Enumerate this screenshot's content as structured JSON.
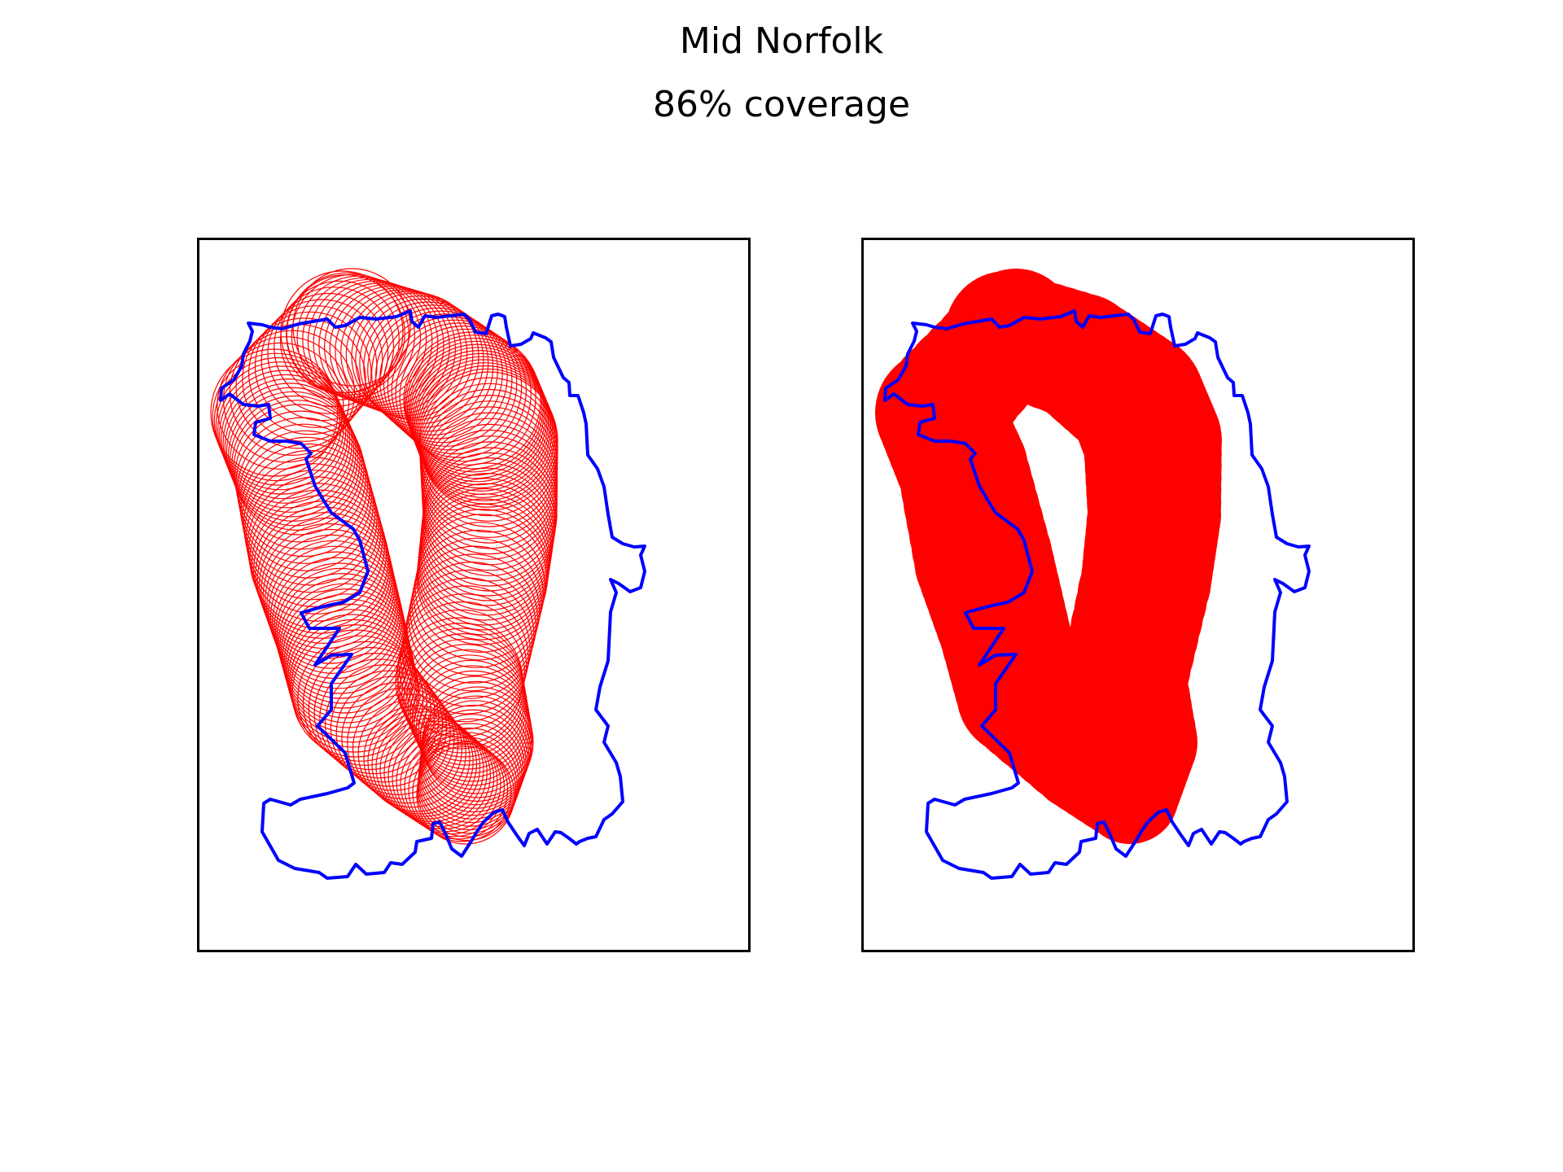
{
  "figure": {
    "title": "Mid Norfolk",
    "subtitle": "86% coverage"
  },
  "colors": {
    "boundary": "#0000ff",
    "coverage": "#ff0000",
    "frame": "#000000",
    "background": "#ffffff"
  },
  "panels": [
    {
      "name": "panel-circle-outlines",
      "style": "outline"
    },
    {
      "name": "panel-coverage-fill",
      "style": "filled"
    }
  ]
}
